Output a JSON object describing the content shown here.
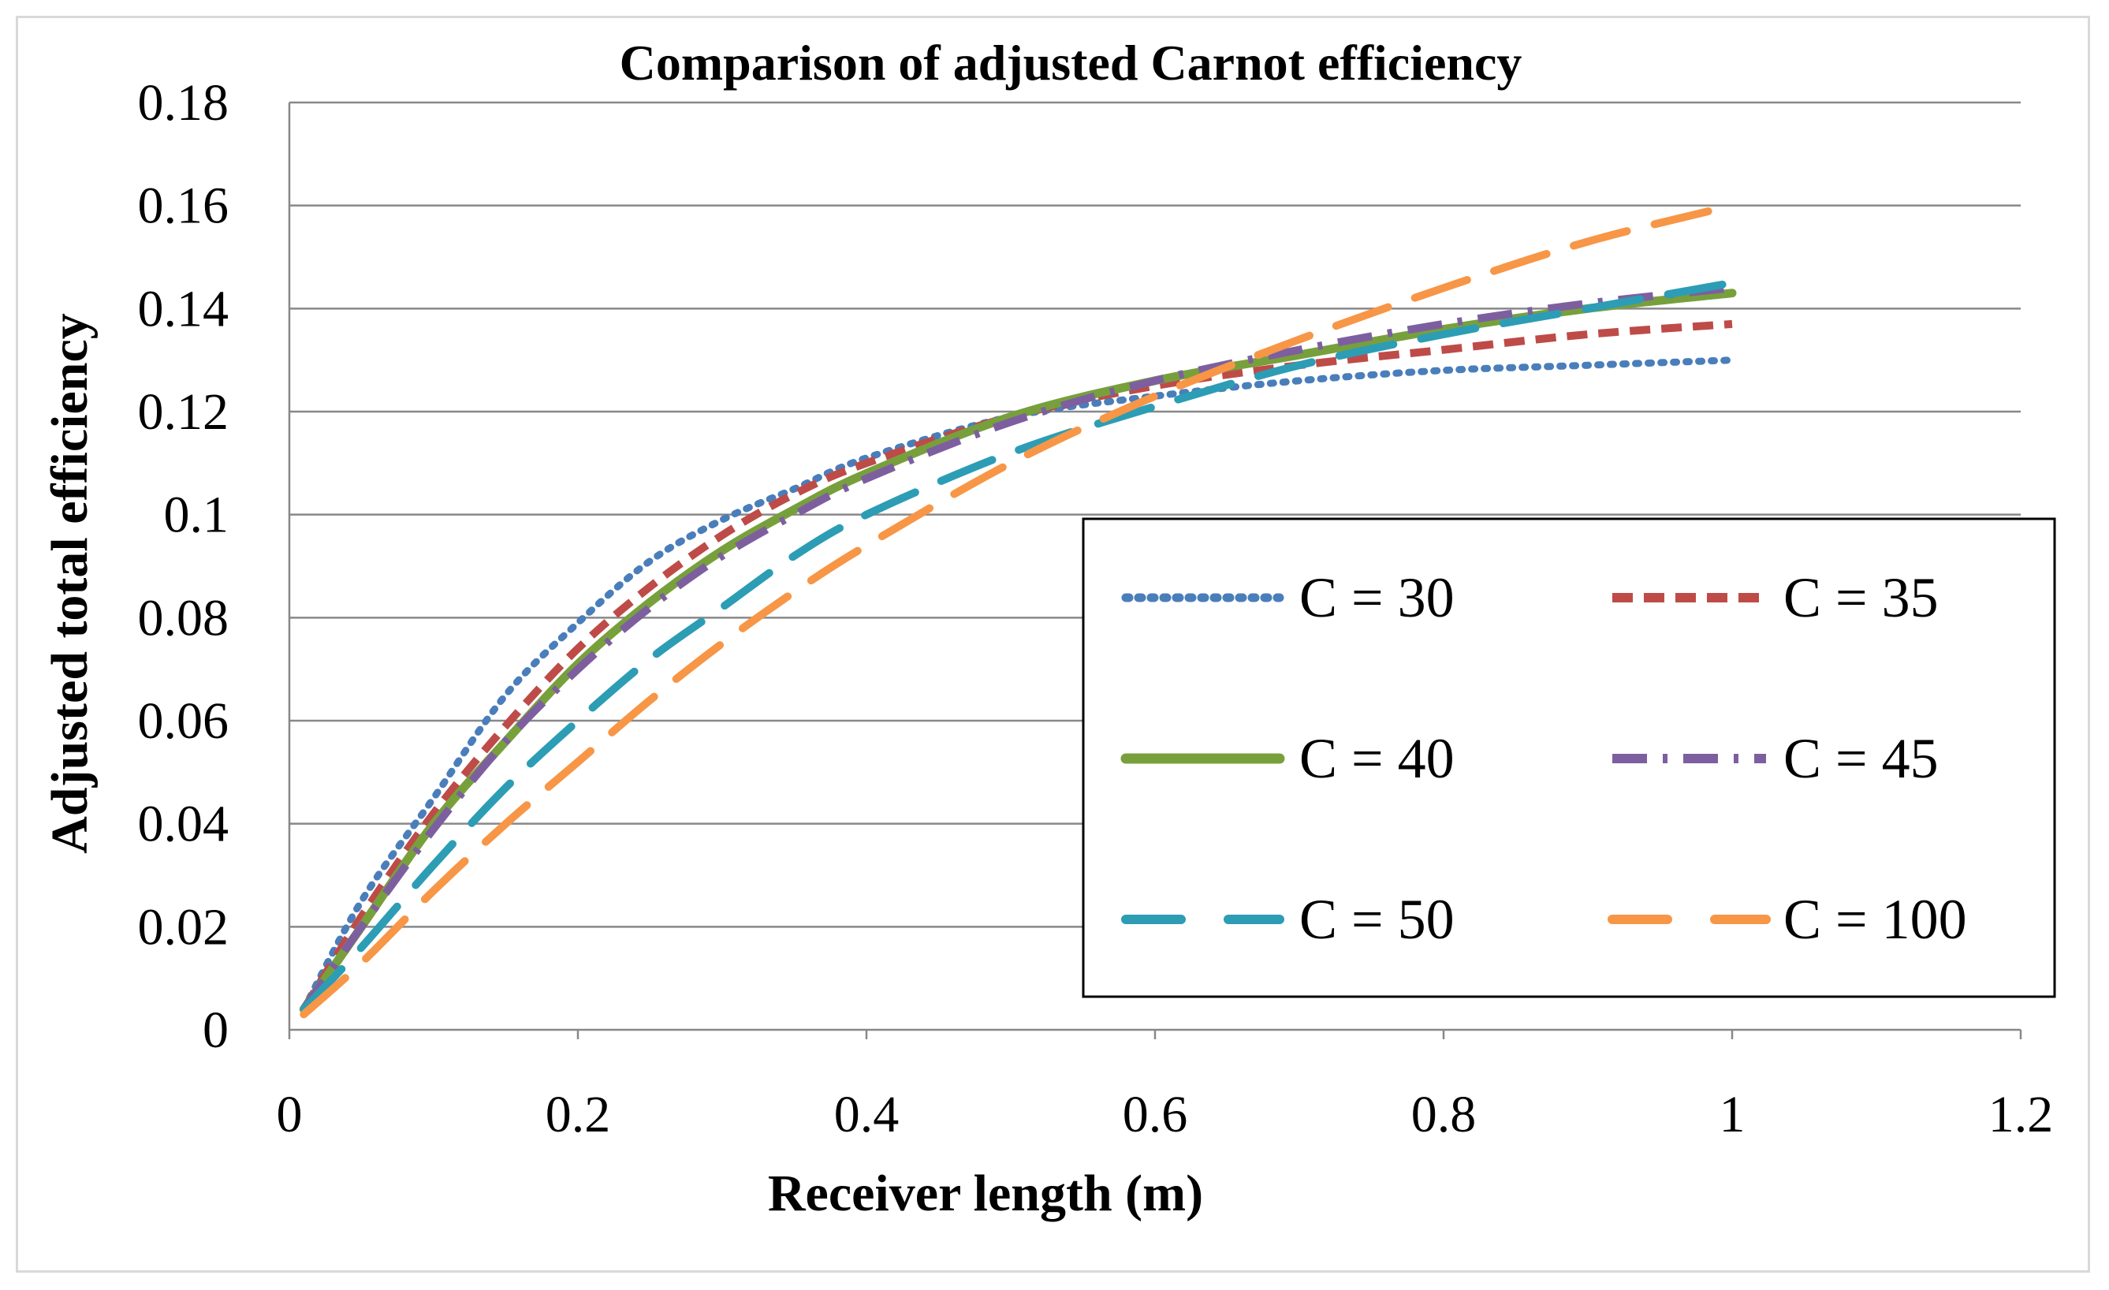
{
  "chart_data": {
    "type": "line",
    "title": "Comparison  of adjusted  Carnot  efficiency",
    "xlabel": "Receiver length (m)",
    "ylabel": "Adjusted total efficiency",
    "xlim": [
      0,
      1.2
    ],
    "ylim": [
      0,
      0.18
    ],
    "x_ticks": [
      0,
      0.2,
      0.4,
      0.6,
      0.8,
      1,
      1.2
    ],
    "x_tick_labels": [
      "0",
      "0.2",
      "0.4",
      "0.6",
      "0.8",
      "1",
      "1.2"
    ],
    "y_ticks": [
      0,
      0.02,
      0.04,
      0.06,
      0.08,
      0.1,
      0.12,
      0.14,
      0.16,
      0.18
    ],
    "y_tick_labels": [
      "0",
      "0.02",
      "0.04",
      "0.06",
      "0.08",
      "0.1",
      "0.12",
      "0.14",
      "0.16",
      "0.18"
    ],
    "grid": "horizontal",
    "legend_position": "bottom-right",
    "series": [
      {
        "name": "C = 30",
        "color": "#4a7ebb",
        "style": "dotted",
        "x": [
          0.01,
          0.05,
          0.1,
          0.15,
          0.2,
          0.25,
          0.3,
          0.35,
          0.4,
          0.5,
          0.6,
          0.7,
          0.8,
          0.9,
          1.0
        ],
        "y": [
          0.004,
          0.025,
          0.045,
          0.065,
          0.079,
          0.091,
          0.099,
          0.105,
          0.111,
          0.119,
          0.123,
          0.126,
          0.128,
          0.129,
          0.13
        ]
      },
      {
        "name": "C = 35",
        "color": "#be4b48",
        "style": "dashed",
        "x": [
          0.01,
          0.05,
          0.1,
          0.15,
          0.2,
          0.25,
          0.3,
          0.35,
          0.4,
          0.5,
          0.6,
          0.7,
          0.8,
          0.9,
          1.0
        ],
        "y": [
          0.004,
          0.022,
          0.042,
          0.059,
          0.074,
          0.086,
          0.096,
          0.104,
          0.11,
          0.119,
          0.125,
          0.129,
          0.132,
          0.135,
          0.137
        ]
      },
      {
        "name": "C = 40",
        "color": "#77a03c",
        "style": "solid",
        "x": [
          0.01,
          0.05,
          0.1,
          0.15,
          0.2,
          0.25,
          0.3,
          0.35,
          0.4,
          0.5,
          0.6,
          0.7,
          0.8,
          0.9,
          1.0
        ],
        "y": [
          0.004,
          0.02,
          0.04,
          0.056,
          0.071,
          0.083,
          0.093,
          0.101,
          0.108,
          0.119,
          0.126,
          0.131,
          0.136,
          0.14,
          0.143
        ]
      },
      {
        "name": "C = 45",
        "color": "#7d5fa0",
        "style": "dash-dot",
        "x": [
          0.01,
          0.05,
          0.1,
          0.15,
          0.2,
          0.25,
          0.3,
          0.35,
          0.4,
          0.5,
          0.6,
          0.7,
          0.8,
          0.9,
          1.0
        ],
        "y": [
          0.004,
          0.02,
          0.039,
          0.056,
          0.07,
          0.082,
          0.092,
          0.1,
          0.107,
          0.118,
          0.126,
          0.132,
          0.137,
          0.141,
          0.144
        ]
      },
      {
        "name": "C = 50",
        "color": "#2c9db5",
        "style": "long-dash",
        "x": [
          0.01,
          0.05,
          0.1,
          0.15,
          0.2,
          0.25,
          0.3,
          0.35,
          0.4,
          0.5,
          0.6,
          0.7,
          0.8,
          0.9,
          1.0
        ],
        "y": [
          0.004,
          0.016,
          0.032,
          0.047,
          0.06,
          0.072,
          0.082,
          0.092,
          0.1,
          0.112,
          0.121,
          0.129,
          0.135,
          0.14,
          0.145
        ]
      },
      {
        "name": "C = 100",
        "color": "#f79646",
        "style": "long-dash",
        "x": [
          0.01,
          0.05,
          0.1,
          0.15,
          0.2,
          0.25,
          0.3,
          0.35,
          0.4,
          0.5,
          0.6,
          0.7,
          0.8,
          0.9,
          1.0
        ],
        "y": [
          0.003,
          0.013,
          0.027,
          0.04,
          0.052,
          0.064,
          0.075,
          0.085,
          0.094,
          0.11,
          0.123,
          0.134,
          0.144,
          0.153,
          0.16
        ]
      }
    ]
  }
}
